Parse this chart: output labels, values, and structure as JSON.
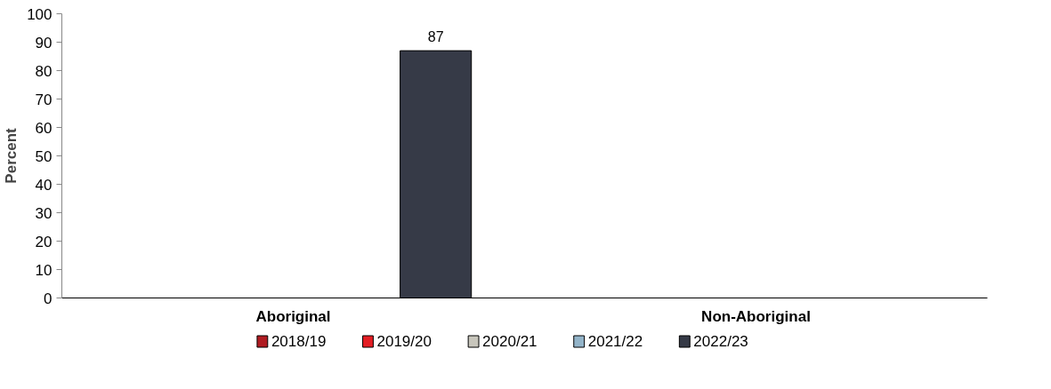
{
  "chart_data": {
    "type": "bar",
    "ylabel": "Percent",
    "categories": [
      "Aboriginal",
      "Non-Aboriginal"
    ],
    "series": [
      {
        "name": "2018/19",
        "color": "#b01c22",
        "values": [
          null,
          null
        ]
      },
      {
        "name": "2019/20",
        "color": "#e31e24",
        "values": [
          null,
          null
        ]
      },
      {
        "name": "2020/21",
        "color": "#c8c6bc",
        "values": [
          null,
          null
        ]
      },
      {
        "name": "2021/22",
        "color": "#93b4c9",
        "values": [
          null,
          null
        ]
      },
      {
        "name": "2022/23",
        "color": "#363a47",
        "values": [
          87,
          null
        ]
      }
    ],
    "ylim": [
      0,
      100
    ],
    "yticks": [
      0,
      10,
      20,
      30,
      40,
      50,
      60,
      70,
      80,
      90,
      100
    ],
    "grid": false,
    "legend": "bottom",
    "data_labels": true
  }
}
